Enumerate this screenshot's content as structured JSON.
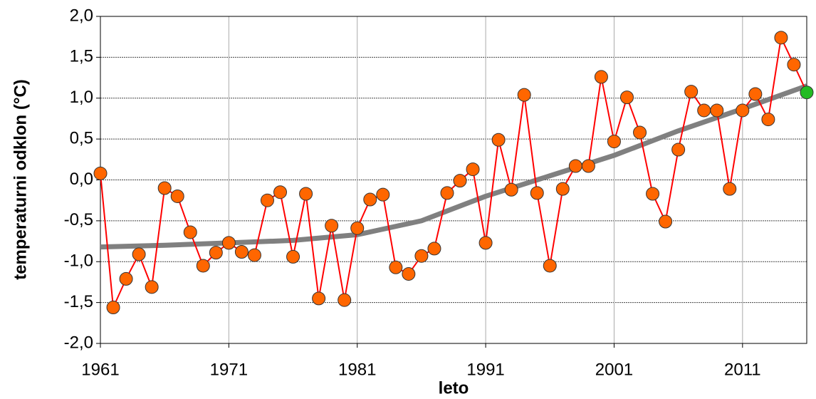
{
  "chart_data": {
    "type": "line",
    "x_label": "leto",
    "y_label": "temperaturni odklon (°C)",
    "xlim": [
      1961,
      2016
    ],
    "xticks": [
      1961,
      1971,
      1981,
      1991,
      2001,
      2011
    ],
    "ylim": [
      -2,
      2
    ],
    "yticks": [
      {
        "value": -2,
        "label": "-2,0"
      },
      {
        "value": -1.5,
        "label": "-1,5"
      },
      {
        "value": -1,
        "label": "-1,0"
      },
      {
        "value": -0.5,
        "label": "-0,5"
      },
      {
        "value": 0,
        "label": "0,0"
      },
      {
        "value": 0.5,
        "label": "0,5"
      },
      {
        "value": 1,
        "label": "1,0"
      },
      {
        "value": 1.5,
        "label": "1,5"
      },
      {
        "value": 2,
        "label": "2,0"
      }
    ],
    "grid": true,
    "series": [
      {
        "color": "#ff0000",
        "marker_color": "#ff6600",
        "last_marker_color": "#22bb22",
        "line_width": 2,
        "markers": true,
        "x": [
          1961,
          1962,
          1963,
          1964,
          1965,
          1966,
          1967,
          1968,
          1969,
          1970,
          1971,
          1972,
          1973,
          1974,
          1975,
          1976,
          1977,
          1978,
          1979,
          1980,
          1981,
          1982,
          1983,
          1984,
          1985,
          1986,
          1987,
          1988,
          1989,
          1990,
          1991,
          1992,
          1993,
          1994,
          1995,
          1996,
          1997,
          1998,
          1999,
          2000,
          2001,
          2002,
          2003,
          2004,
          2005,
          2006,
          2007,
          2008,
          2009,
          2010,
          2011,
          2012,
          2013,
          2014,
          2015,
          2016
        ],
        "values": [
          0.08,
          -1.56,
          -1.21,
          -0.91,
          -1.31,
          -0.1,
          -0.2,
          -0.64,
          -1.05,
          -0.89,
          -0.77,
          -0.88,
          -0.92,
          -0.25,
          -0.15,
          -0.94,
          -0.17,
          -1.45,
          -0.56,
          -1.47,
          -0.59,
          -0.24,
          -0.18,
          -1.07,
          -1.15,
          -0.93,
          -0.84,
          -0.16,
          -0.01,
          0.13,
          -0.77,
          0.49,
          -0.12,
          1.04,
          -0.16,
          -1.05,
          -0.11,
          0.17,
          0.17,
          1.26,
          0.47,
          1.01,
          0.58,
          -0.17,
          -0.51,
          0.37,
          1.08,
          0.85,
          0.85,
          -0.11,
          0.85,
          1.05,
          0.74,
          1.74,
          1.41,
          1.07
        ]
      },
      {
        "color": "#808080",
        "line_width": 7,
        "markers": false,
        "x": [
          1961,
          1966,
          1971,
          1976,
          1981,
          1986,
          1991,
          1996,
          2001,
          2006,
          2011,
          2016
        ],
        "values": [
          -0.82,
          -0.8,
          -0.77,
          -0.74,
          -0.67,
          -0.5,
          -0.2,
          0.05,
          0.3,
          0.6,
          0.87,
          1.15
        ]
      }
    ]
  }
}
